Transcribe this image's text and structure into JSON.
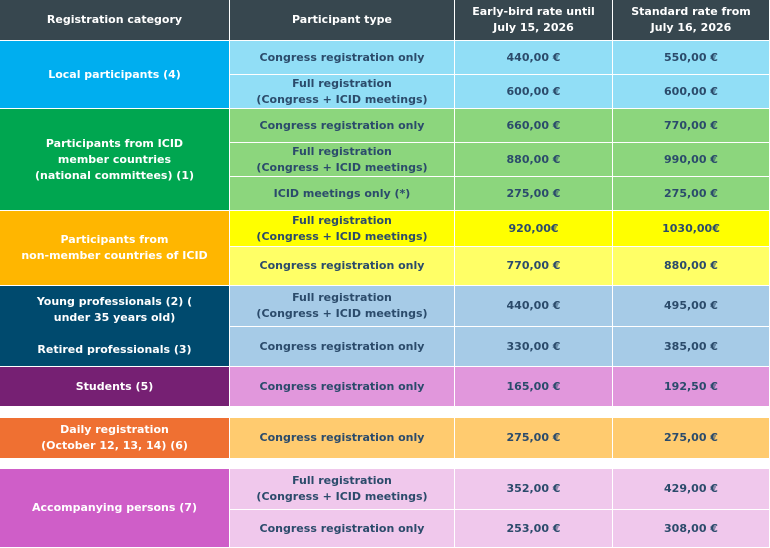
{
  "header": {
    "category": "Registration category",
    "participant_type": "Participant type",
    "early_bird": "Early-bird rate until\nJuly 15, 2026",
    "standard": "Standard rate from\nJuly 16, 2026"
  },
  "colors": {
    "header": "#37474f",
    "local": "#00aeef",
    "local_rows": "#91def6",
    "member": "#00a650",
    "member_rows": "#8cd67d",
    "nonmember": "#ffb600",
    "nonmember_row1": "#ffff00",
    "nonmember_row2": "#ffff66",
    "young": "#004a6e",
    "young_rows": "#a6cbe7",
    "students": "#762073",
    "students_rows": "#e197dc",
    "daily": "#ef7032",
    "daily_rows": "#ffcb6f",
    "accompanying": "#cf5ec8",
    "accompanying_rows": "#f0c8ec",
    "text_dark": "#2b4b6b"
  },
  "categories": [
    {
      "id": "local",
      "label": "Local participants (4)"
    },
    {
      "id": "member",
      "label": "Participants from ICID\nmember countries\n(national committees) (1)"
    },
    {
      "id": "nonmember",
      "label": "Participants from\nnon-member countries of ICID"
    },
    {
      "id": "young",
      "label": "Young professionals (2) (\nunder 35 years old)"
    },
    {
      "id": "retired",
      "label": "Retired professionals (3)"
    },
    {
      "id": "students",
      "label": "Students (5)"
    },
    {
      "id": "daily",
      "label": "Daily registration\n(October 12, 13, 14) (6)"
    },
    {
      "id": "accompanying",
      "label": "Accompanying persons (7)"
    }
  ],
  "rows": [
    {
      "type": "Congress registration only",
      "early": "440,00 €",
      "standard": "550,00 €"
    },
    {
      "type": "Full registration\n(Congress + ICID meetings)",
      "early": "600,00 €",
      "standard": "600,00 €"
    },
    {
      "type": "Congress registration only",
      "early": "660,00 €",
      "standard": "770,00 €"
    },
    {
      "type": "Full registration\n(Congress + ICID meetings)",
      "early": "880,00 €",
      "standard": "990,00 €"
    },
    {
      "type": "ICID meetings only (*)",
      "early": "275,00 €",
      "standard": "275,00 €"
    },
    {
      "type": "Full registration\n(Congress + ICID meetings)",
      "early": "920,00€",
      "standard": "1030,00€"
    },
    {
      "type": "Congress registration only",
      "early": "770,00 €",
      "standard": "880,00 €"
    },
    {
      "type": "Full registration\n(Congress + ICID meetings)",
      "early": "440,00 €",
      "standard": "495,00 €"
    },
    {
      "type": "Congress registration only",
      "early": "330,00 €",
      "standard": "385,00 €"
    },
    {
      "type": "Congress registration only",
      "early": "165,00 €",
      "standard": "192,50 €"
    },
    {
      "type": "Congress registration only",
      "early": "275,00 €",
      "standard": "275,00 €"
    },
    {
      "type": "Full registration\n(Congress + ICID meetings)",
      "early": "352,00 €",
      "standard": "429,00 €"
    },
    {
      "type": "Congress registration only",
      "early": "253,00 €",
      "standard": "308,00 €"
    }
  ]
}
